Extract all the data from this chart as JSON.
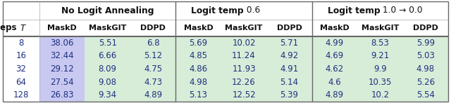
{
  "steps": [
    "8",
    "16",
    "32",
    "64",
    "128"
  ],
  "group_headers_bold": [
    "No Logit Annealing",
    "Logit temp",
    "Logit temp"
  ],
  "group_headers_normal": [
    "",
    " 0.6",
    " 1.0 → 0.0"
  ],
  "col_subheaders": [
    "MaskD",
    "MaskGIT",
    "DDPD"
  ],
  "data": [
    [
      [
        "38.06",
        "5.51",
        "6.8"
      ],
      [
        "5.69",
        "10.02",
        "5.71"
      ],
      [
        "4.99",
        "8.53",
        "5.99"
      ]
    ],
    [
      [
        "32.44",
        "6.66",
        "5.12"
      ],
      [
        "4.85",
        "11.24",
        "4.92"
      ],
      [
        "4.69",
        "9.21",
        "5.03"
      ]
    ],
    [
      [
        "29.12",
        "8.09",
        "4.75"
      ],
      [
        "4.86",
        "11.93",
        "4.91"
      ],
      [
        "4.62",
        "9.9",
        "4.98"
      ]
    ],
    [
      [
        "27.54",
        "9.08",
        "4.73"
      ],
      [
        "4.98",
        "12.26",
        "5.14"
      ],
      [
        "4.6",
        "10.35",
        "5.26"
      ]
    ],
    [
      [
        "26.83",
        "9.34",
        "4.89"
      ],
      [
        "5.13",
        "12.52",
        "5.39"
      ],
      [
        "4.89",
        "10.2",
        "5.54"
      ]
    ]
  ],
  "maskd_color": "#c8c8f0",
  "green_color": "#d8edd8",
  "white": "#ffffff",
  "text_color": "#1e3080",
  "header_text_color": "#111111",
  "border_color": "#666666",
  "dpi": 100,
  "figsize": [
    6.4,
    1.47
  ]
}
